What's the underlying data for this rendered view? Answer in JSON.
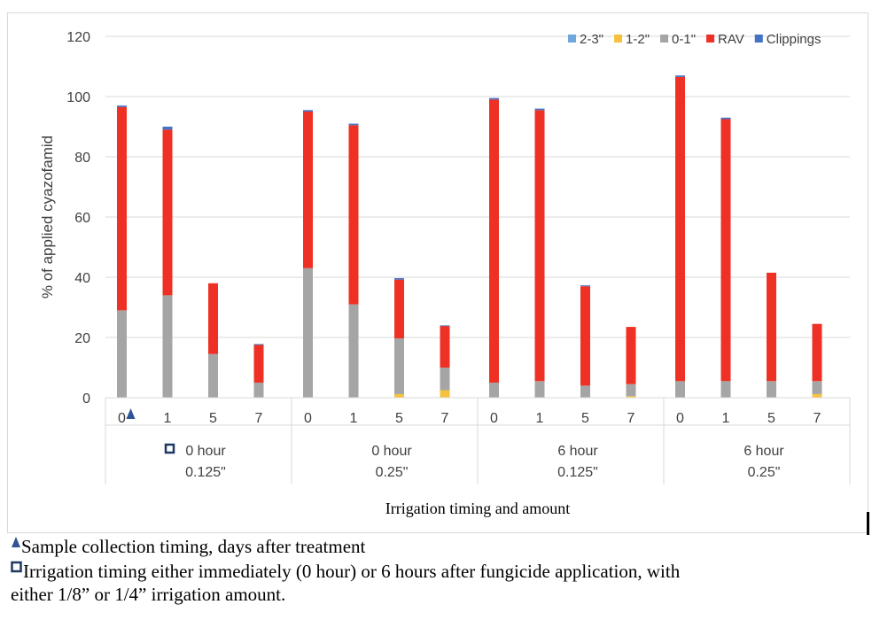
{
  "chart_data": {
    "type": "bar",
    "stacked": true,
    "ylabel": "% of applied cyazofamid",
    "xlabel": "Irrigation timing and amount",
    "ylim": [
      0,
      120
    ],
    "yticks": [
      "0",
      "20",
      "40",
      "60",
      "80",
      "100",
      "120"
    ],
    "grid": true,
    "legend_position": "top-right",
    "categories": [
      "0",
      "1",
      "5",
      "7",
      "0",
      "1",
      "5",
      "7",
      "0",
      "1",
      "5",
      "7",
      "0",
      "1",
      "5",
      "7"
    ],
    "groups": [
      {
        "line1": "0 hour",
        "line2": "0.125\""
      },
      {
        "line1": "0 hour",
        "line2": "0.25\""
      },
      {
        "line1": "6 hour",
        "line2": "0.125\""
      },
      {
        "line1": "6 hour",
        "line2": "0.25\""
      }
    ],
    "series": [
      {
        "name": "2-3\"",
        "color": "#6fa8dc",
        "values": [
          0,
          0,
          0,
          0,
          0,
          0,
          0,
          0,
          0,
          0,
          0,
          0,
          0,
          0,
          0,
          0
        ]
      },
      {
        "name": "1-2\"",
        "color": "#f6c23e",
        "values": [
          0,
          0,
          0,
          0,
          0,
          0,
          1.2,
          2.5,
          0,
          0,
          0,
          0.5,
          0,
          0,
          0,
          1.2
        ]
      },
      {
        "name": "0-1\"",
        "color": "#a5a5a5",
        "values": [
          29,
          34,
          14.5,
          5,
          43,
          31,
          18.5,
          7.5,
          5,
          5.5,
          4,
          4,
          5.5,
          5.5,
          5.5,
          4.3
        ]
      },
      {
        "name": "RAV",
        "color": "#ee3124",
        "values": [
          67.5,
          55,
          23.5,
          12.5,
          52,
          59.5,
          19.5,
          13.8,
          94,
          90,
          33,
          19,
          101,
          87,
          36,
          19
        ]
      },
      {
        "name": "Clippings",
        "color": "#4472c4",
        "values": [
          0.5,
          1,
          0,
          0.3,
          0.5,
          0.5,
          0.5,
          0.2,
          0.5,
          0.5,
          0.3,
          0,
          0.5,
          0.5,
          0,
          0
        ]
      }
    ]
  },
  "footnotes": {
    "sample_timing": "Sample collection timing, days after treatment",
    "irrigation_line1": "Irrigation timing either immediately (0 hour) or 6 hours after fungicide application, with",
    "irrigation_line2": "either 1/8” or 1/4” irrigation amount."
  },
  "colors": {
    "grid": "#d9d9d9",
    "axis_text": "#404040",
    "triangle_marker": "#2f5597",
    "square_marker": "#1f3864"
  }
}
